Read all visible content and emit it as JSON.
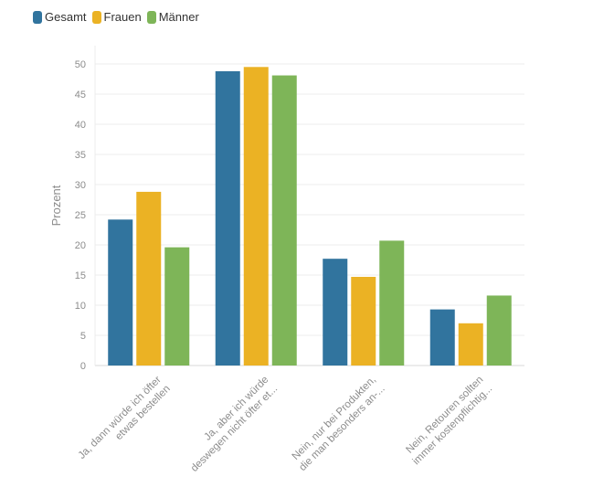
{
  "chart_data": {
    "type": "bar",
    "ylabel": "Prozent",
    "xlabel": "",
    "ylim": [
      0,
      50
    ],
    "yticks": [
      0,
      5,
      10,
      15,
      20,
      25,
      30,
      35,
      40,
      45,
      50
    ],
    "grid": true,
    "legend_position": "top-left",
    "categories": [
      [
        "Ja, dann würde ich öfter",
        "etwas bestellen"
      ],
      [
        "Ja, aber ich würde",
        "deswegen nicht öfter et..."
      ],
      [
        "Nein, nur bei Produkten,",
        "die man besonders an-..."
      ],
      [
        "Nein, Retouren sollten",
        "immer kostenpflichtig..."
      ]
    ],
    "series": [
      {
        "name": "Gesamt",
        "color": "#31749e",
        "values": [
          24.2,
          48.8,
          17.7,
          9.3
        ]
      },
      {
        "name": "Frauen",
        "color": "#ebb224",
        "values": [
          28.8,
          49.5,
          14.7,
          7.0
        ]
      },
      {
        "name": "Männer",
        "color": "#7eb558",
        "values": [
          19.6,
          48.1,
          20.7,
          11.6
        ]
      }
    ]
  }
}
